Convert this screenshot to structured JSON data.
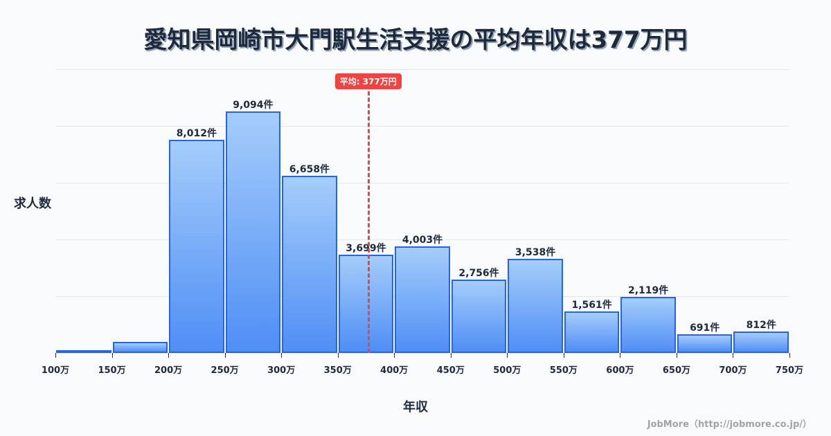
{
  "title": "愛知県岡崎市大門駅生活支援の平均年収は377万円",
  "ylabel": "求人数",
  "xlabel": "年収",
  "average_badge": "平均: 377万円",
  "credit": "JobMore（http://jobmore.co.jp/）",
  "colors": {
    "bar_border": "#2563eb",
    "bar_top": "#a5cdfb",
    "bar_bottom": "#4f8ef5",
    "average": "#ef4444",
    "text": "#1e293b",
    "grid": "#e2e8f0"
  },
  "chart_data": {
    "type": "bar",
    "title": "愛知県岡崎市大門駅生活支援の平均年収は377万円",
    "xlabel": "年収",
    "ylabel": "求人数",
    "categories": [
      "100-150万",
      "150-200万",
      "200-250万",
      "250-300万",
      "300-350万",
      "350-400万",
      "400-450万",
      "450-500万",
      "500-550万",
      "550-600万",
      "600-650万",
      "650-700万",
      "700-750万"
    ],
    "values": [
      20,
      420,
      8012,
      9094,
      6658,
      3699,
      4003,
      2756,
      3538,
      1561,
      2119,
      691,
      812
    ],
    "labels": [
      "",
      "",
      "8,012件",
      "9,094件",
      "6,658件",
      "3,699件",
      "4,003件",
      "2,756件",
      "3,538件",
      "1,561件",
      "2,119件",
      "691件",
      "812件"
    ],
    "x_ticks": [
      "100万",
      "150万",
      "200万",
      "250万",
      "300万",
      "350万",
      "400万",
      "450万",
      "500万",
      "550万",
      "600万",
      "650万",
      "700万",
      "750万"
    ],
    "average": 377,
    "average_label": "平均: 377万円",
    "ylim": [
      0,
      10680
    ],
    "grid": true,
    "gridline_count": 5
  }
}
